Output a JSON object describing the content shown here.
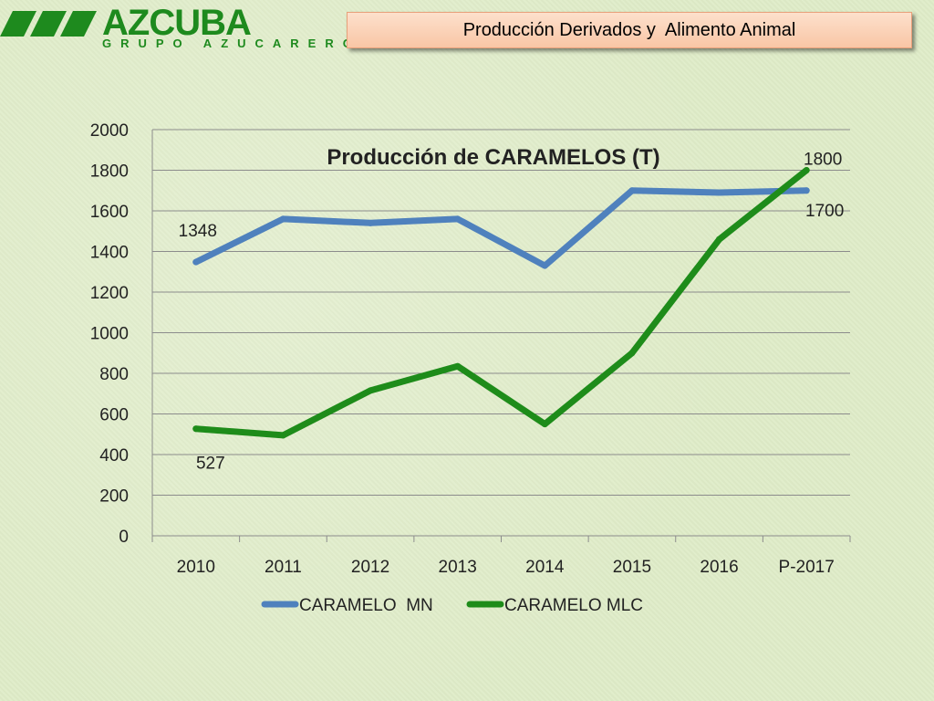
{
  "logo": {
    "name": "AZCUBA",
    "subtitle": "GRUPO AZUCARERO"
  },
  "header": {
    "title": "Producción Derivados y  Alimento Animal"
  },
  "colors": {
    "series_mn": "#4f81bd",
    "series_mlc": "#1e8c1a",
    "logo_green": "#1e8a1e",
    "header_box": "#fbd2b8"
  },
  "chart_data": {
    "type": "line",
    "title": "Producción de CARAMELOS (T)",
    "categories": [
      "2010",
      "2011",
      "2012",
      "2013",
      "2014",
      "2015",
      "2016",
      "P-2017"
    ],
    "ylim": [
      0,
      2000
    ],
    "yticks": [
      "0",
      "200",
      "400",
      "600",
      "800",
      "1000",
      "1200",
      "1400",
      "1600",
      "1800",
      "2000"
    ],
    "grid": true,
    "legend": "bottom",
    "series": [
      {
        "name": "CARAMELO  MN",
        "values": [
          1348,
          1560,
          1540,
          1560,
          1330,
          1700,
          1690,
          1700
        ]
      },
      {
        "name": "CARAMELO MLC",
        "values": [
          527,
          495,
          715,
          835,
          550,
          900,
          1460,
          1800
        ]
      }
    ],
    "data_labels": [
      {
        "series": 0,
        "index": 0,
        "text": "1348"
      },
      {
        "series": 1,
        "index": 0,
        "text": "527"
      },
      {
        "series": 1,
        "index": 7,
        "text": "1800"
      },
      {
        "series": 0,
        "index": 7,
        "text": "1700"
      }
    ]
  }
}
